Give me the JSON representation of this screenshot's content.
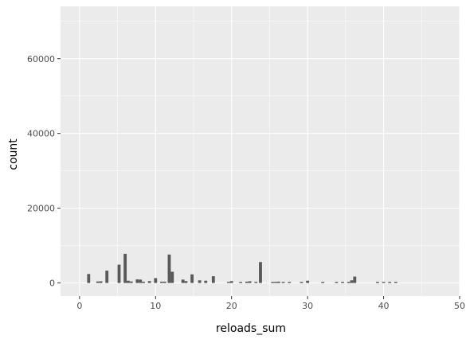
{
  "chart_data": {
    "type": "bar",
    "xlabel": "reloads_sum",
    "ylabel": "count",
    "xlim": [
      -2.5,
      50
    ],
    "ylim": [
      -3500,
      74000
    ],
    "x_ticks": [
      0,
      10,
      20,
      30,
      40,
      50
    ],
    "y_ticks": [
      0,
      20000,
      40000,
      60000
    ],
    "x_tick_labels": [
      "0",
      "10",
      "20",
      "30",
      "40",
      "50"
    ],
    "y_tick_labels": [
      "0",
      "20000",
      "40000",
      "60000"
    ],
    "grid": true,
    "panel_background": "#ebebeb",
    "grid_color": "#ffffff",
    "bar_color": "#595959",
    "x": [
      1.2,
      2.4,
      2.8,
      3.6,
      5.2,
      6.0,
      6.4,
      6.8,
      7.6,
      8.0,
      8.4,
      9.2,
      10.0,
      10.8,
      11.2,
      11.8,
      12.2,
      13.6,
      14.0,
      14.8,
      15.8,
      16.6,
      17.6,
      19.6,
      20.0,
      21.2,
      22.0,
      22.4,
      23.2,
      23.8,
      25.4,
      25.8,
      26.2,
      26.8,
      27.6,
      29.2,
      30.0,
      32.0,
      33.8,
      34.6,
      35.4,
      35.8,
      36.2,
      39.2,
      40.0,
      40.8,
      41.6
    ],
    "values": [
      2400,
      400,
      450,
      3300,
      4900,
      7800,
      600,
      400,
      950,
      900,
      350,
      500,
      1300,
      350,
      350,
      7600,
      3000,
      900,
      500,
      2300,
      700,
      600,
      1800,
      300,
      500,
      300,
      350,
      450,
      300,
      5600,
      300,
      300,
      350,
      300,
      300,
      300,
      600,
      300,
      300,
      300,
      300,
      700,
      1700,
      300,
      300,
      300,
      300
    ],
    "bin_width": 0.4
  }
}
